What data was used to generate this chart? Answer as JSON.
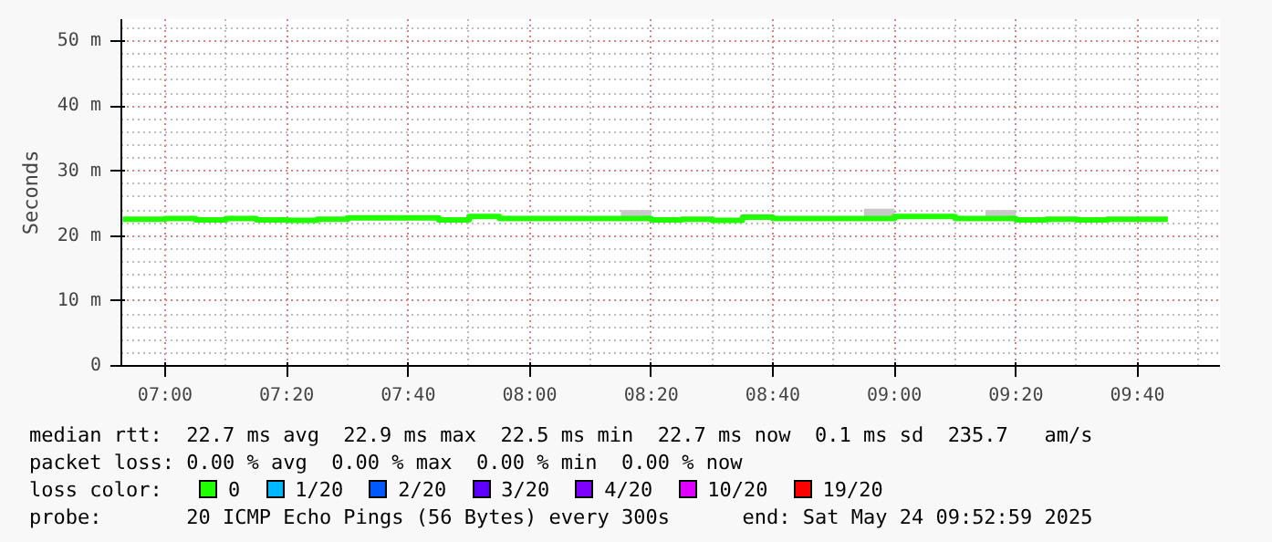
{
  "chart_data": {
    "type": "step",
    "ylabel": "Seconds",
    "x": [
      6.8833,
      7,
      7.0833,
      7.1667,
      7.25,
      7.3333,
      7.4167,
      7.5,
      7.5833,
      7.6667,
      7.75,
      7.8333,
      7.9167,
      8,
      8.0833,
      8.1667,
      8.25,
      8.3333,
      8.4167,
      8.5,
      8.5833,
      8.6667,
      8.75,
      8.8333,
      8.9167,
      9,
      9.0833,
      9.1667,
      9.25,
      9.3333,
      9.4167,
      9.5,
      9.5833,
      9.6667,
      9.75
    ],
    "series": [
      {
        "name": "0",
        "color": "#20ff00",
        "values": [
          22.6,
          22.7,
          22.5,
          22.7,
          22.5,
          22.4,
          22.6,
          22.8,
          22.8,
          22.8,
          22.5,
          23.0,
          22.7,
          22.7,
          22.7,
          22.7,
          22.7,
          22.5,
          22.6,
          22.4,
          22.9,
          22.7,
          22.7,
          22.7,
          22.7,
          23.0,
          23.0,
          22.7,
          22.7,
          22.5,
          22.6,
          22.5,
          22.6,
          22.6,
          22.6
        ],
        "lower": [
          22.6,
          22.7,
          22.5,
          22.7,
          22.5,
          22.4,
          22.6,
          22.8,
          22.8,
          22.8,
          22.5,
          23.0,
          22.7,
          22.7,
          22.7,
          22.7,
          22.7,
          22.5,
          22.6,
          22.4,
          22.9,
          22.7,
          22.7,
          22.7,
          22.7,
          23.0,
          23.0,
          22.7,
          22.7,
          22.5,
          22.6,
          22.5,
          22.6,
          22.6,
          22.6
        ],
        "upper": [
          22.6,
          22.7,
          22.5,
          22.7,
          22.5,
          22.4,
          22.6,
          22.8,
          22.8,
          22.8,
          22.5,
          23.0,
          22.7,
          22.7,
          22.7,
          22.7,
          24.0,
          22.5,
          22.6,
          22.4,
          22.9,
          22.7,
          22.7,
          22.7,
          24.2,
          23.0,
          23.0,
          22.7,
          24.0,
          22.5,
          22.6,
          22.5,
          22.6,
          22.6,
          22.6
        ]
      },
      {
        "name": "1/20",
        "color": "#00b8ff",
        "values": [
          null,
          null,
          null,
          null,
          null,
          null,
          null,
          null,
          null,
          null,
          null,
          null,
          null,
          null,
          null,
          null,
          null,
          null,
          null,
          null,
          null,
          null,
          null,
          null,
          null,
          null,
          null,
          null,
          null,
          null,
          null,
          null,
          null,
          null,
          null
        ]
      },
      {
        "name": "2/20",
        "color": "#0059ff",
        "values": [
          null,
          null,
          null,
          null,
          null,
          null,
          null,
          null,
          null,
          null,
          null,
          null,
          null,
          null,
          null,
          null,
          null,
          null,
          null,
          null,
          null,
          null,
          null,
          null,
          null,
          null,
          null,
          null,
          null,
          null,
          null,
          null,
          null,
          null,
          null
        ]
      },
      {
        "name": "3/20",
        "color": "#5e00ff",
        "values": [
          null,
          null,
          null,
          null,
          null,
          null,
          null,
          null,
          null,
          null,
          null,
          null,
          null,
          null,
          null,
          null,
          null,
          null,
          null,
          null,
          null,
          null,
          null,
          null,
          null,
          null,
          null,
          null,
          null,
          null,
          null,
          null,
          null,
          null,
          null
        ]
      },
      {
        "name": "4/20",
        "color": "#7e00ff",
        "values": [
          null,
          null,
          null,
          null,
          null,
          null,
          null,
          null,
          null,
          null,
          null,
          null,
          null,
          null,
          null,
          null,
          null,
          null,
          null,
          null,
          null,
          null,
          null,
          null,
          null,
          null,
          null,
          null,
          null,
          null,
          null,
          null,
          null,
          null,
          null
        ]
      },
      {
        "name": "10/20",
        "color": "#dd00ff",
        "values": [
          null,
          null,
          null,
          null,
          null,
          null,
          null,
          null,
          null,
          null,
          null,
          null,
          null,
          null,
          null,
          null,
          null,
          null,
          null,
          null,
          null,
          null,
          null,
          null,
          null,
          null,
          null,
          null,
          null,
          null,
          null,
          null,
          null,
          null,
          null
        ]
      },
      {
        "name": "19/20",
        "color": "#ff0000",
        "values": [
          null,
          null,
          null,
          null,
          null,
          null,
          null,
          null,
          null,
          null,
          null,
          null,
          null,
          null,
          null,
          null,
          null,
          null,
          null,
          null,
          null,
          null,
          null,
          null,
          null,
          null,
          null,
          null,
          null,
          null,
          null,
          null,
          null,
          null,
          null
        ]
      }
    ],
    "legend_title": "loss color:",
    "legend": "bottom",
    "xlim": [
      6.88,
      9.893
    ],
    "xticks": [
      {
        "value": 7,
        "label": "07:00"
      },
      {
        "value": 7.3333,
        "label": "07:20"
      },
      {
        "value": 7.6667,
        "label": "07:40"
      },
      {
        "value": 8,
        "label": "08:00"
      },
      {
        "value": 8.3333,
        "label": "08:20"
      },
      {
        "value": 8.6667,
        "label": "08:40"
      },
      {
        "value": 9,
        "label": "09:00"
      },
      {
        "value": 9.3333,
        "label": "09:20"
      },
      {
        "value": 9.6667,
        "label": "09:40"
      }
    ],
    "ylim": [
      0,
      53.4
    ],
    "yticks": [
      0,
      {
        "value": 10,
        "label": "10 m"
      },
      {
        "value": 20,
        "label": "20 m"
      },
      {
        "value": 30,
        "label": "30 m"
      },
      {
        "value": 40,
        "label": "40 m"
      },
      {
        "value": 50,
        "label": "50 m"
      }
    ],
    "grid": true,
    "annotations": [
      "median rtt:  22.7 ms avg  22.9 ms max  22.5 ms min  22.7 ms now  0.1 ms sd  235.7   am/s",
      "packet loss: 0.00 % avg  0.00 % max  0.00 % min  0.00 % now",
      "probe:       20 ICMP Echo Pings (56 Bytes) every 300s",
      "end: Sat May 24 09:52:59 2025"
    ]
  }
}
